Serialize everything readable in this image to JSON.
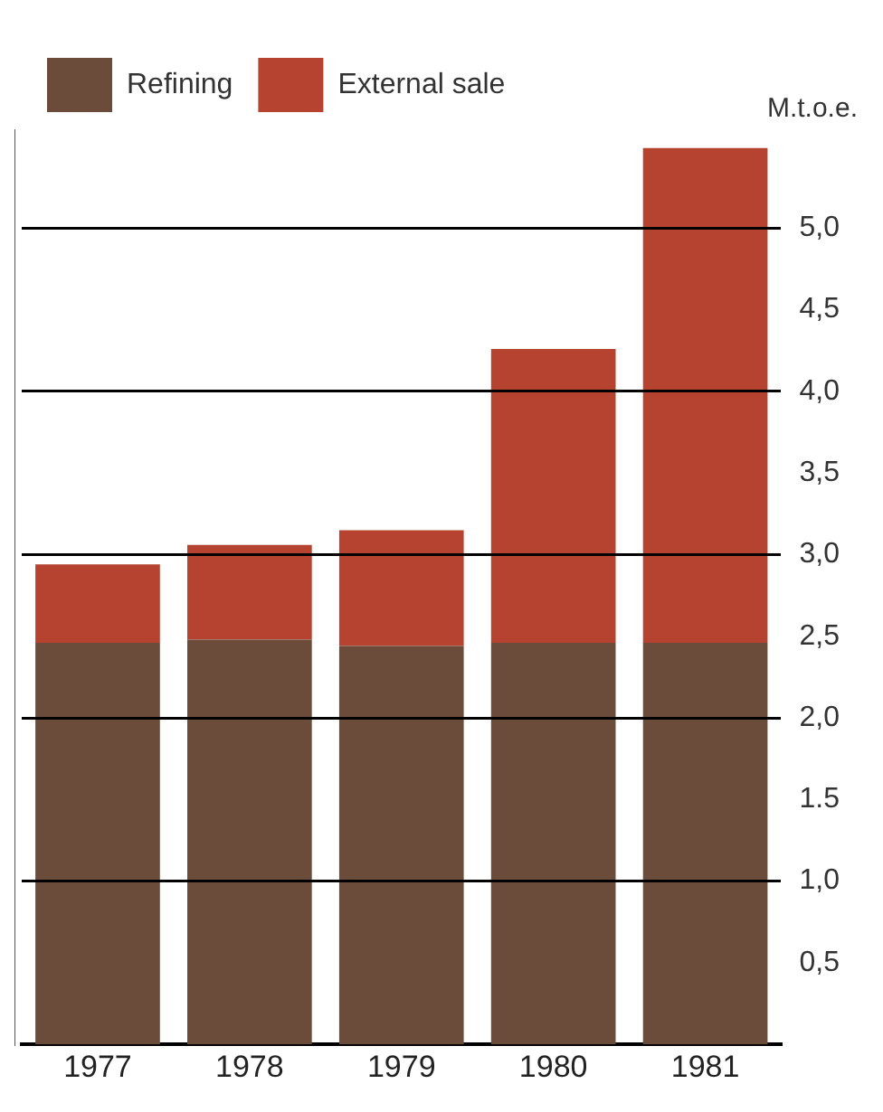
{
  "chart_data": {
    "type": "bar",
    "stacked": true,
    "categories": [
      "1977",
      "1978",
      "1979",
      "1980",
      "1981"
    ],
    "series": [
      {
        "name": "Refining",
        "color": "#6b4c3b",
        "values": [
          2.46,
          2.48,
          2.44,
          2.46,
          2.46
        ]
      },
      {
        "name": "External sale",
        "color": "#b5432f",
        "values": [
          0.48,
          0.58,
          0.71,
          1.8,
          3.03
        ]
      }
    ],
    "ylabel": "M.t.o.e.",
    "ylim": [
      0,
      5.6
    ],
    "yticks": [
      {
        "value": 0.5,
        "label": "0,5"
      },
      {
        "value": 1,
        "label": "1,0"
      },
      {
        "value": 1.5,
        "label": "1.5"
      },
      {
        "value": 2,
        "label": "2,0"
      },
      {
        "value": 2.5,
        "label": "2,5"
      },
      {
        "value": 3,
        "label": "3,0"
      },
      {
        "value": 3.5,
        "label": "3,5"
      },
      {
        "value": 4,
        "label": "4,0"
      },
      {
        "value": 4.5,
        "label": "4,5"
      },
      {
        "value": 5,
        "label": "5,0"
      }
    ],
    "grid": "y",
    "legend": "top left"
  }
}
